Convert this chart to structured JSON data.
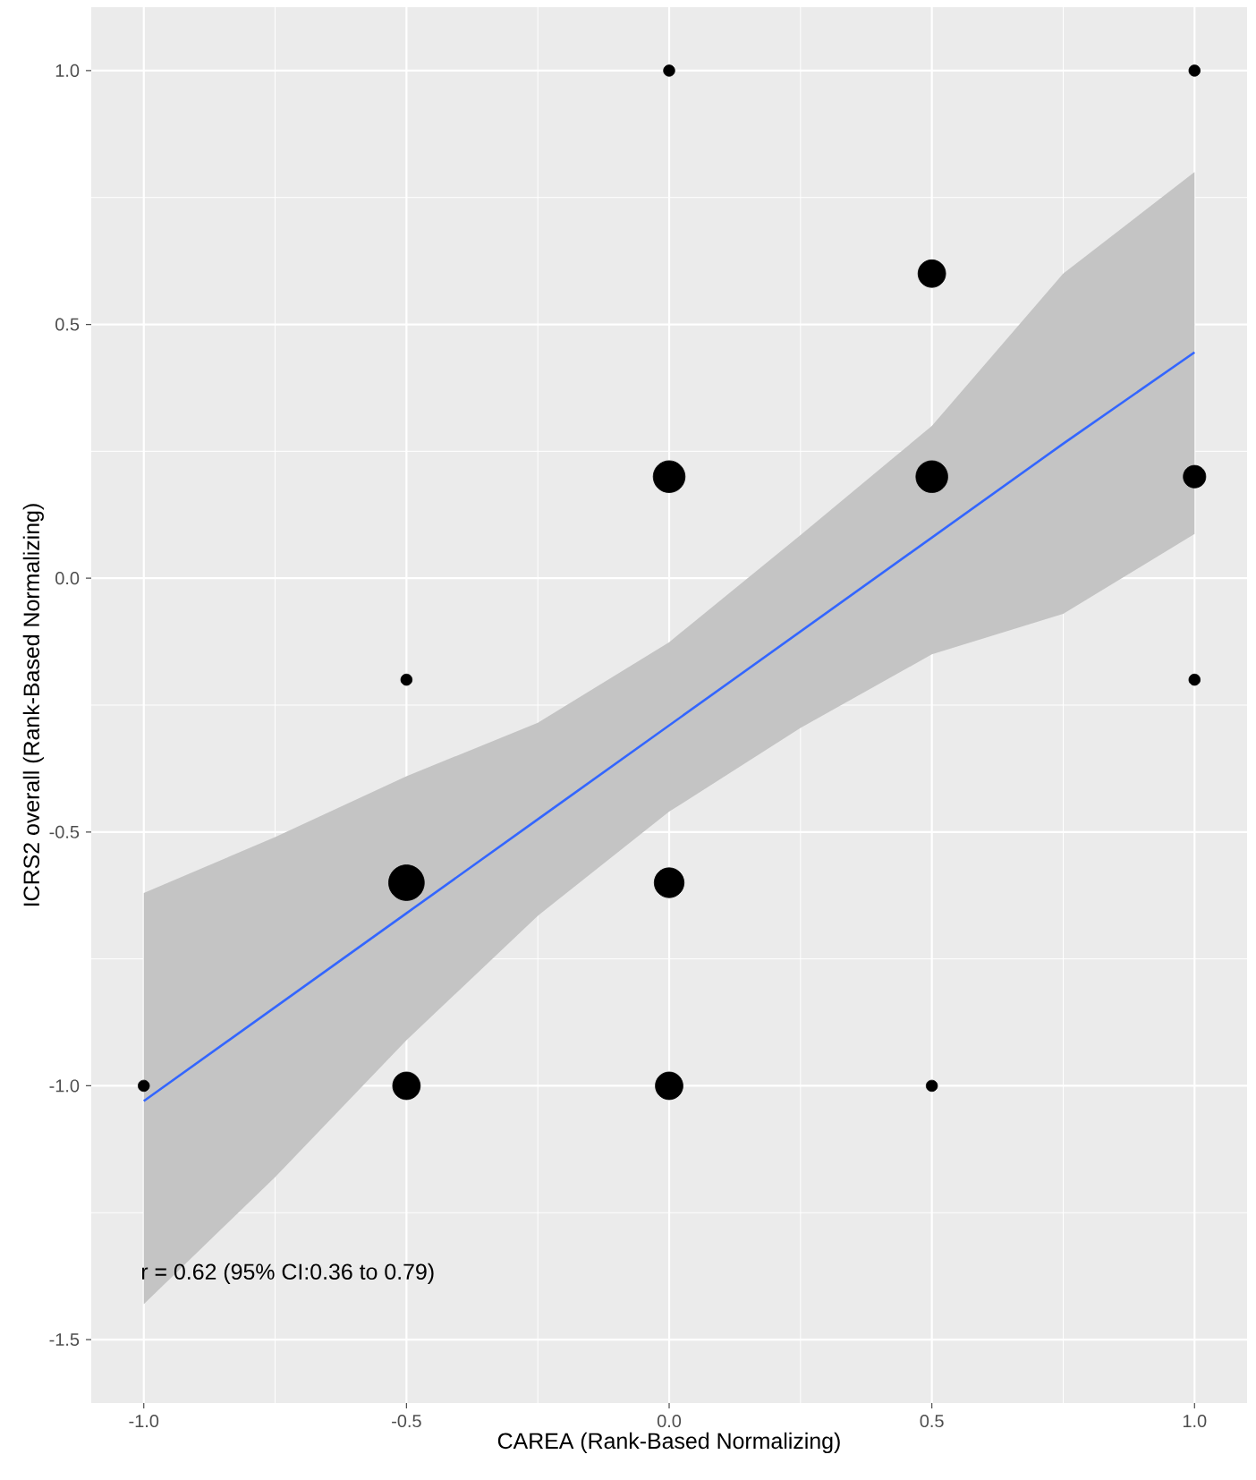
{
  "chart_data": {
    "type": "bubble",
    "xlabel": "CAREA (Rank-Based Normalizing)",
    "ylabel": "ICRS2 overall (Rank-Based Normalizing)",
    "xlim": [
      -1.1,
      1.1
    ],
    "ylim": [
      -1.625,
      1.125
    ],
    "xticks": [
      {
        "value": -1,
        "label": "-1.0"
      },
      {
        "value": -0.5,
        "label": "-0.5"
      },
      {
        "value": 0,
        "label": "0.0"
      },
      {
        "value": 0.5,
        "label": "0.5"
      },
      {
        "value": 1,
        "label": "1.0"
      }
    ],
    "yticks": [
      {
        "value": -1.5,
        "label": "-1.5"
      },
      {
        "value": -1,
        "label": "-1.0"
      },
      {
        "value": -0.5,
        "label": "-0.5"
      },
      {
        "value": 0,
        "label": "0.0"
      },
      {
        "value": 0.5,
        "label": "0.5"
      },
      {
        "value": 1,
        "label": "1.0"
      }
    ],
    "grid": true,
    "annotations": [
      "r = 0.62 (95% CI:0.36 to 0.79)"
    ],
    "series": [
      {
        "type": "line",
        "color": "#3366ff",
        "x": [
          -1,
          -0.75,
          -0.5,
          -0.25,
          0,
          0.25,
          0.5,
          0.75,
          1
        ],
        "values": [
          -1.03,
          -0.845,
          -0.66,
          -0.475,
          -0.29,
          -0.105,
          0.08,
          0.265,
          0.445
        ],
        "lower": [
          -1.43,
          -1.18,
          -0.91,
          -0.665,
          -0.46,
          -0.295,
          -0.15,
          -0.07,
          0.087
        ],
        "upper": [
          -0.62,
          -0.51,
          -0.39,
          -0.285,
          -0.126,
          0.085,
          0.3,
          0.6,
          0.8
        ]
      },
      {
        "type": "bubble",
        "color": "#000000",
        "x": [
          -1,
          -0.5,
          -0.5,
          -0.5,
          0,
          0,
          0,
          0,
          0.5,
          0.5,
          0.5,
          1,
          1,
          1
        ],
        "values": [
          -1,
          -0.2,
          -0.6,
          -1,
          1,
          0.2,
          -0.6,
          -1,
          0.6,
          0.2,
          -1,
          1,
          0.2,
          -0.2
        ],
        "sizes": [
          0.1,
          0.1,
          1,
          0.6,
          0.1,
          0.8,
          0.7,
          0.6,
          0.6,
          0.8,
          0.1,
          0.1,
          0.4,
          0.1
        ]
      }
    ]
  }
}
